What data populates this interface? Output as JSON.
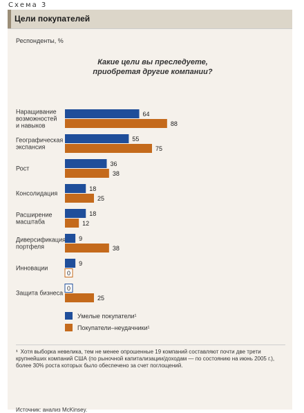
{
  "figure": {
    "label": "Схема 3",
    "title": "Цели покупателей",
    "respondents": "Респонденты, %",
    "question_line1": "Какие цели вы преследуете,",
    "question_line2": "приобретая другие компании?"
  },
  "chart_data": {
    "type": "bar",
    "orientation": "horizontal",
    "categories": [
      [
        "Наращивание",
        "возможностей",
        "и навыков"
      ],
      [
        "Географическая",
        "экспансия"
      ],
      [
        "Рост"
      ],
      [
        "Консолидация"
      ],
      [
        "Расширение",
        "масштаба"
      ],
      [
        "Диверсификация",
        "портфеля"
      ],
      [
        "Инновации"
      ],
      [
        "Защита бизнеса"
      ]
    ],
    "series": [
      {
        "name": "Умелые покупатели¹",
        "color": "#1f4e9a",
        "values": [
          64,
          55,
          36,
          18,
          18,
          9,
          9,
          0
        ]
      },
      {
        "name": "Покупатели–неудачники¹",
        "color": "#c46a1c",
        "values": [
          88,
          75,
          38,
          25,
          12,
          38,
          0,
          25
        ]
      }
    ],
    "xlim": [
      0,
      100
    ],
    "grid": false,
    "legend_position": "bottom-left"
  },
  "footnote": {
    "marker": "¹",
    "text": "Хотя выборка невелика, тем не менее опрошенные 19 компаний составляют почти две трети крупнейших компаний США (по рыночной капитализации/доходам — по состоянию на июнь 2005 г.), более 30% роста которых было обеспечено за счет поглощений."
  },
  "source": "Источник: анализ McKinsey."
}
